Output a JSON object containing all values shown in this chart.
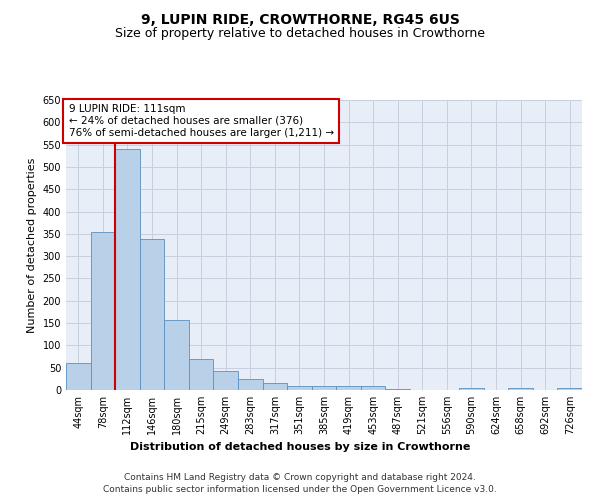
{
  "title": "9, LUPIN RIDE, CROWTHORNE, RG45 6US",
  "subtitle": "Size of property relative to detached houses in Crowthorne",
  "xlabel": "Distribution of detached houses by size in Crowthorne",
  "ylabel": "Number of detached properties",
  "categories": [
    "44sqm",
    "78sqm",
    "112sqm",
    "146sqm",
    "180sqm",
    "215sqm",
    "249sqm",
    "283sqm",
    "317sqm",
    "351sqm",
    "385sqm",
    "419sqm",
    "453sqm",
    "487sqm",
    "521sqm",
    "556sqm",
    "590sqm",
    "624sqm",
    "658sqm",
    "692sqm",
    "726sqm"
  ],
  "values": [
    60,
    355,
    540,
    338,
    157,
    70,
    42,
    25,
    16,
    10,
    9,
    9,
    10,
    2,
    0,
    0,
    5,
    0,
    5,
    0,
    5
  ],
  "bar_color": "#b8d0e8",
  "bar_edge_color": "#5a90c0",
  "vline_color": "#cc0000",
  "annotation_text": "9 LUPIN RIDE: 111sqm\n← 24% of detached houses are smaller (376)\n76% of semi-detached houses are larger (1,211) →",
  "annotation_box_color": "#cc0000",
  "ylim": [
    0,
    650
  ],
  "yticks": [
    0,
    50,
    100,
    150,
    200,
    250,
    300,
    350,
    400,
    450,
    500,
    550,
    600,
    650
  ],
  "background_color": "#ffffff",
  "plot_bg_color": "#e8eef8",
  "grid_color": "#c8d0e0",
  "footer_line1": "Contains HM Land Registry data © Crown copyright and database right 2024.",
  "footer_line2": "Contains public sector information licensed under the Open Government Licence v3.0.",
  "title_fontsize": 10,
  "subtitle_fontsize": 9,
  "axis_label_fontsize": 8,
  "tick_fontsize": 7,
  "annotation_fontsize": 7.5,
  "footer_fontsize": 6.5
}
